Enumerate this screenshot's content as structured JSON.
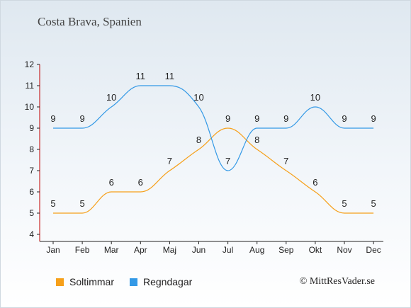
{
  "chart_data": {
    "type": "line",
    "title": "Costa Brava, Spanien",
    "categories": [
      "Jan",
      "Feb",
      "Mar",
      "Apr",
      "Maj",
      "Jun",
      "Jul",
      "Aug",
      "Sep",
      "Okt",
      "Nov",
      "Dec"
    ],
    "ylim": [
      4,
      12
    ],
    "yticks": [
      4,
      5,
      6,
      7,
      8,
      9,
      10,
      11,
      12
    ],
    "grid": false,
    "legend_position": "bottom-left",
    "series": [
      {
        "name": "Soltimmar",
        "color": "#f6a01a",
        "values": [
          5,
          5,
          6,
          6,
          7,
          8,
          9,
          8,
          7,
          6,
          5,
          5
        ]
      },
      {
        "name": "Regndagar",
        "color": "#3399e6",
        "values": [
          9,
          9,
          10,
          11,
          11,
          10,
          7,
          9,
          9,
          10,
          9,
          9
        ]
      }
    ]
  },
  "credit": "© MittResVader.se"
}
